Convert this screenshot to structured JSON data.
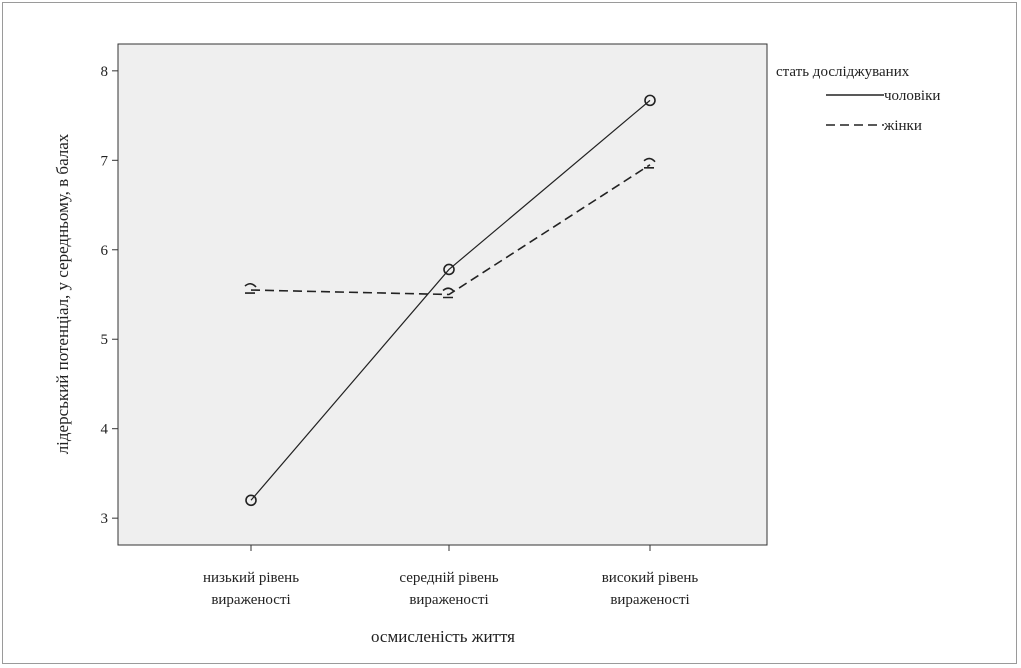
{
  "chart_data": {
    "type": "line",
    "categories": [
      [
        "низький рівень",
        "вираженості"
      ],
      [
        "середній рівень",
        "вираженості"
      ],
      [
        "високий рівень",
        "вираженості"
      ]
    ],
    "xlabel": "осмисленість життя",
    "ylabel": "лідерський потенціал, у середньому, в балах",
    "ylim": [
      2.7,
      8.3
    ],
    "yticks": [
      3,
      4,
      5,
      6,
      7,
      8
    ],
    "grid": false,
    "plot_background": "#efefef",
    "legend": {
      "title": "стать досліджуваних",
      "position": "right"
    },
    "series": [
      {
        "name": "чоловіки",
        "values": [
          3.2,
          5.78,
          7.67
        ],
        "style": "solid",
        "marker": "circle",
        "color": "#222222"
      },
      {
        "name": "жінки",
        "values": [
          5.55,
          5.5,
          6.95
        ],
        "style": "dashed",
        "marker": "tick",
        "color": "#222222"
      }
    ]
  }
}
